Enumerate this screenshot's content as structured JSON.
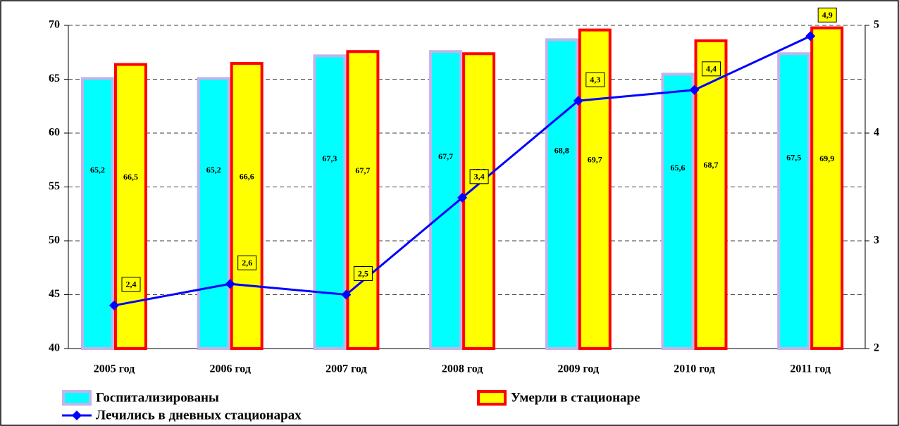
{
  "chart_data": {
    "type": "bar",
    "categories": [
      "2005 год",
      "2006 год",
      "2007 год",
      "2008 год",
      "2009 год",
      "2010 год",
      "2011 год"
    ],
    "series": [
      {
        "name": "Госпитализированы",
        "type": "bar",
        "color": "#00ffff",
        "border": "#c0b4ec",
        "values": [
          65.2,
          65.2,
          67.3,
          67.7,
          68.8,
          65.6,
          67.5
        ],
        "value_labels": [
          "65,2",
          "65,2",
          "67,3",
          "67,7",
          "68,8",
          "65,6",
          "67,5"
        ]
      },
      {
        "name": "Умерли в стационаре",
        "type": "bar",
        "color": "#ffff00",
        "border": "#ff0000",
        "values": [
          66.5,
          66.6,
          67.7,
          67.5,
          69.7,
          68.7,
          69.9
        ],
        "value_labels": [
          "66,5",
          "66,6",
          "67,7",
          "67,5",
          "69,7",
          "68,7",
          "69,9"
        ]
      },
      {
        "name": "Лечились в дневных стационарах",
        "type": "line",
        "axis": "y2",
        "color": "#0000ff",
        "values": [
          2.4,
          2.6,
          2.5,
          3.4,
          4.3,
          4.4,
          4.9
        ],
        "value_labels": [
          "2,4",
          "2,6",
          "2,5",
          "3,4",
          "4,3",
          "4,4",
          "4,9"
        ]
      }
    ],
    "ylim": [
      40,
      70
    ],
    "yticks": [
      40,
      45,
      50,
      55,
      60,
      65,
      70
    ],
    "y2lim": [
      2,
      5
    ],
    "y2ticks": [
      2,
      3,
      4,
      5
    ],
    "grid": true
  }
}
